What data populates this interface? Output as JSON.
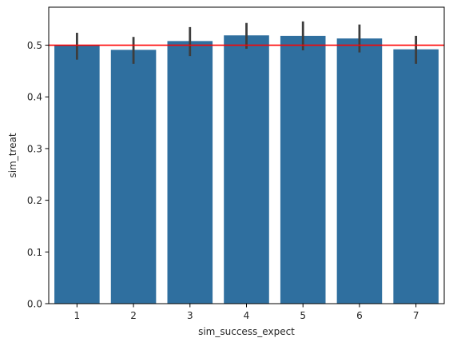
{
  "chart_data": {
    "type": "bar",
    "categories": [
      "1",
      "2",
      "3",
      "4",
      "5",
      "6",
      "7"
    ],
    "values": [
      0.5,
      0.491,
      0.508,
      0.519,
      0.518,
      0.513,
      0.492
    ],
    "error_low": [
      0.472,
      0.464,
      0.479,
      0.493,
      0.49,
      0.486,
      0.464
    ],
    "error_high": [
      0.524,
      0.516,
      0.535,
      0.543,
      0.546,
      0.54,
      0.518
    ],
    "reference_line": 0.5,
    "xlabel": "sim_success_expect",
    "ylabel": "sim_treat",
    "ylim": [
      0,
      0.5735
    ],
    "yticks": [
      0.0,
      0.1,
      0.2,
      0.3,
      0.4,
      0.5
    ],
    "ytick_labels": [
      "0.0",
      "0.1",
      "0.2",
      "0.3",
      "0.4",
      "0.5"
    ],
    "grid": false,
    "colors": {
      "bar": "#2f6f9f",
      "errorbar": "#3d3d3d",
      "reference_line": "#ff0000",
      "axes": "#000000"
    }
  }
}
